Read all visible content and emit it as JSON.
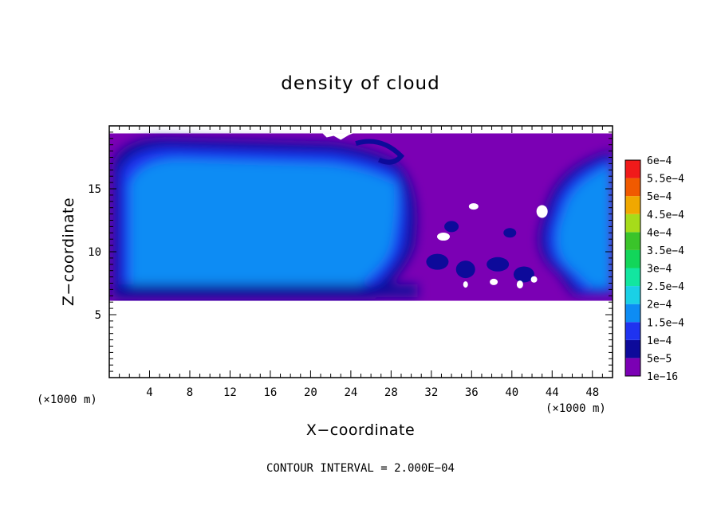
{
  "chart_data": {
    "type": "heatmap",
    "title": "density of cloud",
    "xlabel": "X−coordinate",
    "ylabel": "Z−coordinate",
    "x_unit": "(×1000 m)",
    "y_unit": "(×1000 m)",
    "xlim": [
      0,
      50
    ],
    "ylim": [
      0,
      20
    ],
    "x_ticks": [
      4,
      8,
      12,
      16,
      20,
      24,
      28,
      32,
      36,
      40,
      44,
      48
    ],
    "x_tick_labels": [
      "4",
      "8",
      "12",
      "16",
      "20",
      "24",
      "28",
      "32",
      "36",
      "40",
      "44",
      "48"
    ],
    "y_ticks": [
      5,
      10,
      15
    ],
    "y_tick_labels": [
      "5",
      "10",
      "15"
    ],
    "legend": {
      "position": "right",
      "levels": [
        {
          "label": "1e−16",
          "value": 1e-16,
          "color": "#7b00b4"
        },
        {
          "label": "5e−5",
          "value": 5e-05,
          "color": "#0d0a9a"
        },
        {
          "label": "1e−4",
          "value": 0.0001,
          "color": "#1f33f0"
        },
        {
          "label": "1.5e−4",
          "value": 0.00015,
          "color": "#0d8cf4"
        },
        {
          "label": "2e−4",
          "value": 0.0002,
          "color": "#1ad0e6"
        },
        {
          "label": "2.5e−4",
          "value": 0.00025,
          "color": "#12e6a0"
        },
        {
          "label": "3e−4",
          "value": 0.0003,
          "color": "#12d65a"
        },
        {
          "label": "3.5e−4",
          "value": 0.00035,
          "color": "#3ac42a"
        },
        {
          "label": "4e−4",
          "value": 0.0004,
          "color": "#a6dc1a"
        },
        {
          "label": "4.5e−4",
          "value": 0.00045,
          "color": "#f0a800"
        },
        {
          "label": "5e−4",
          "value": 0.0005,
          "color": "#f05a00"
        },
        {
          "label": "5.5e−4",
          "value": 0.00055,
          "color": "#f01a1a"
        },
        {
          "label": "6e−4",
          "value": 0.0006,
          "color": "#f0808a"
        }
      ]
    },
    "field_regions": [
      {
        "level": 1,
        "x0": 0,
        "x1": 33,
        "z0": 6.1,
        "z1": 19.4
      },
      {
        "level": 2,
        "x0": 0.8,
        "x1": 31.5,
        "z0": 7.0,
        "z1": 18.7
      },
      {
        "level": 3,
        "x0": 1.6,
        "x1": 30.5,
        "z0": 8.5,
        "z1": 18.1
      },
      {
        "level": 3,
        "x0": 44.5,
        "x1": 50,
        "z0": 7.2,
        "z1": 17.5
      }
    ],
    "annotation": "CONTOUR INTERVAL = 2.000E−04"
  }
}
